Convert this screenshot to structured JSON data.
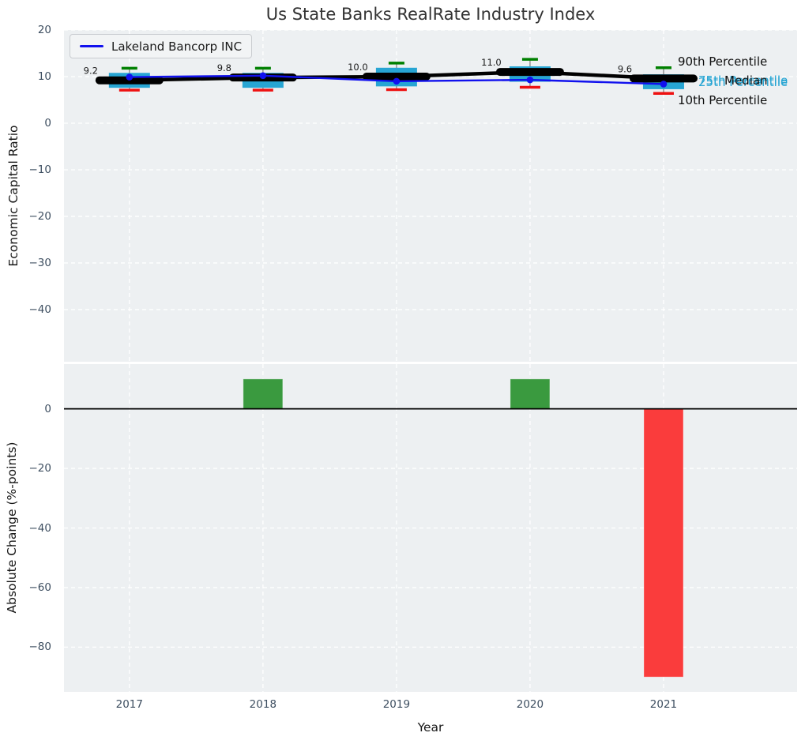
{
  "chart_data": [
    {
      "type": "line",
      "title": "Us State Banks RealRate Industry Index",
      "ylabel": "Economic Capital Ratio",
      "x": [
        2017,
        2018,
        2019,
        2020,
        2021
      ],
      "xlim": [
        2016.51,
        2022.0
      ],
      "ylim": [
        -51.2,
        20
      ],
      "ytick_labels": [
        "20",
        "10",
        "0",
        "−10",
        "−20",
        "−30",
        "−40"
      ],
      "ytick_values": [
        20,
        10,
        0,
        -10,
        -20,
        -30,
        -40
      ],
      "grid": true,
      "legend": {
        "position": "upper left",
        "label": "Lakeland Bancorp INC"
      },
      "series": [
        {
          "name": "Lakeland Bancorp INC",
          "role": "company-line",
          "color": "#1111ee",
          "values": [
            9.9,
            10.2,
            9.0,
            9.3,
            8.4
          ]
        },
        {
          "name": "Median",
          "role": "median-line",
          "color": "#000000",
          "values": [
            9.2,
            9.8,
            10.0,
            11.0,
            9.6
          ],
          "point_labels": [
            "9.2",
            "9.8",
            "10.0",
            "11.0",
            "9.6"
          ]
        },
        {
          "name": "90th Percentile",
          "role": "upper-cap",
          "color": "#008000",
          "values": [
            11.8,
            11.8,
            12.9,
            13.7,
            11.9
          ]
        },
        {
          "name": "75th Percentile",
          "role": "box-top",
          "color": "#27a5d3",
          "values": [
            10.8,
            10.8,
            11.9,
            12.2,
            10.5
          ]
        },
        {
          "name": "25th Percentile",
          "role": "box-bottom",
          "color": "#27a5d3",
          "values": [
            7.6,
            7.6,
            7.9,
            8.9,
            7.3
          ]
        },
        {
          "name": "10th Percentile",
          "role": "lower-cap",
          "color": "#ee1111",
          "values": [
            7.1,
            7.1,
            7.2,
            7.7,
            6.4
          ]
        }
      ],
      "annotations": {
        "p90": "90th Percentile",
        "p75": "75th Percentile",
        "median": "Median",
        "p25": "25th Percentile",
        "p10": "10th Percentile"
      }
    },
    {
      "type": "bar",
      "xlabel": "Year",
      "ylabel": "Absolute Change (%-points)",
      "categories": [
        "2017",
        "2018",
        "2019",
        "2020",
        "2021"
      ],
      "values": [
        0,
        10,
        0,
        10,
        -90
      ],
      "positive_color": "#3a9a3f",
      "negative_color": "#fa3c3c",
      "ytick_labels": [
        "0",
        "−20",
        "−40",
        "−60",
        "−80"
      ],
      "ytick_values": [
        0,
        -20,
        -40,
        -60,
        -80
      ],
      "ylim": [
        -95,
        15
      ],
      "grid": true,
      "zero_line": true
    }
  ],
  "colors": {
    "plot_background": "#edf0f2",
    "grid": "#ffffff",
    "tick_label": "#3d4e60",
    "percentile_box": "#27a5d3",
    "p90_cap": "#008000",
    "p10_cap": "#ee1111",
    "median_line": "#000000",
    "company_line": "#1111ee",
    "bar_positive": "#3a9a3f",
    "bar_negative": "#fa3c3c"
  }
}
